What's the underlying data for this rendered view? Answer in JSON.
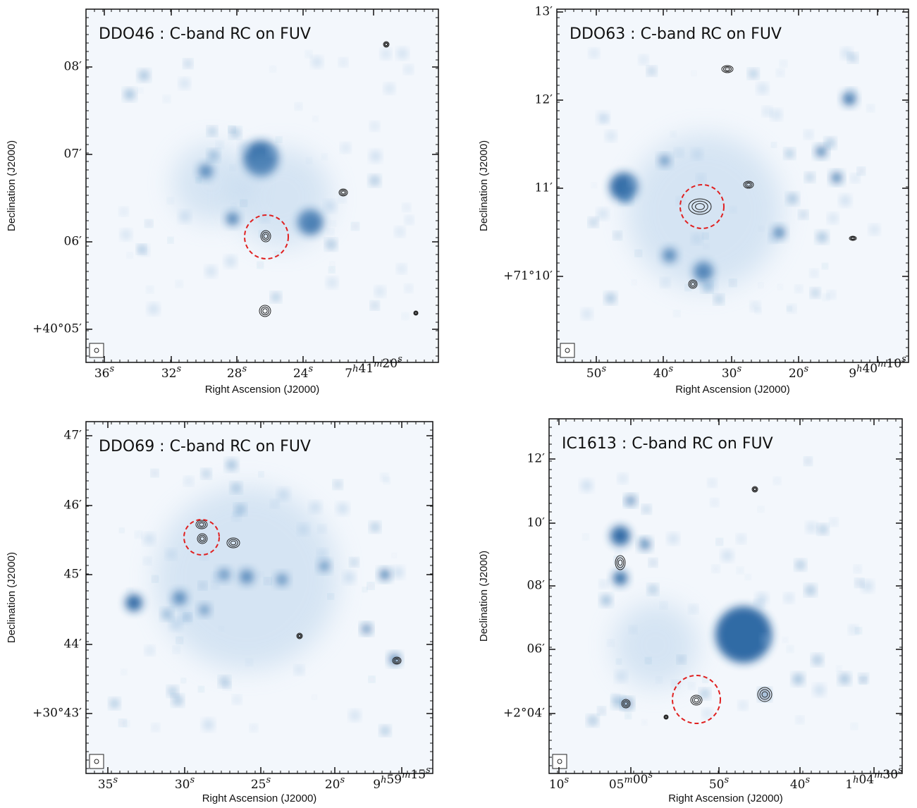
{
  "panels": [
    {
      "title": "DDO46 : C-band RC on FUV",
      "yticks": [
        "08′",
        "07′",
        "06′",
        "+40°05′"
      ],
      "xticks": [
        "36s",
        "32s",
        "28s",
        "24s",
        "7h41m20s"
      ],
      "x_label": "Right Ascension (J2000)",
      "y_label": "Declination (J2000)"
    },
    {
      "title": "DDO63 : C-band RC on FUV",
      "yticks": [
        "13′",
        "12′",
        "11′",
        "+71°10′"
      ],
      "xticks": [
        "50s",
        "40s",
        "30s",
        "20s",
        "9h40m10s"
      ],
      "x_label": "Right Ascension (J2000)",
      "y_label": "Declination (J2000)"
    },
    {
      "title": "DDO69 : C-band RC on FUV",
      "yticks": [
        "47′",
        "46′",
        "45′",
        "44′",
        "+30°43′"
      ],
      "xticks": [
        "35s",
        "30s",
        "25s",
        "20s",
        "9h59m15s"
      ],
      "x_label": "Right Ascension (J2000)",
      "y_label": "Declination (J2000)"
    },
    {
      "title": "IC1613 : C-band RC on FUV",
      "yticks": [
        "12′",
        "10′",
        "08′",
        "06′",
        "+2°04′"
      ],
      "xticks": [
        "10s",
        "05m00s",
        "50s",
        "40s",
        "1h04m30s"
      ],
      "x_label": "Right Ascension (J2000)",
      "y_label": "Declination (J2000)"
    }
  ]
}
